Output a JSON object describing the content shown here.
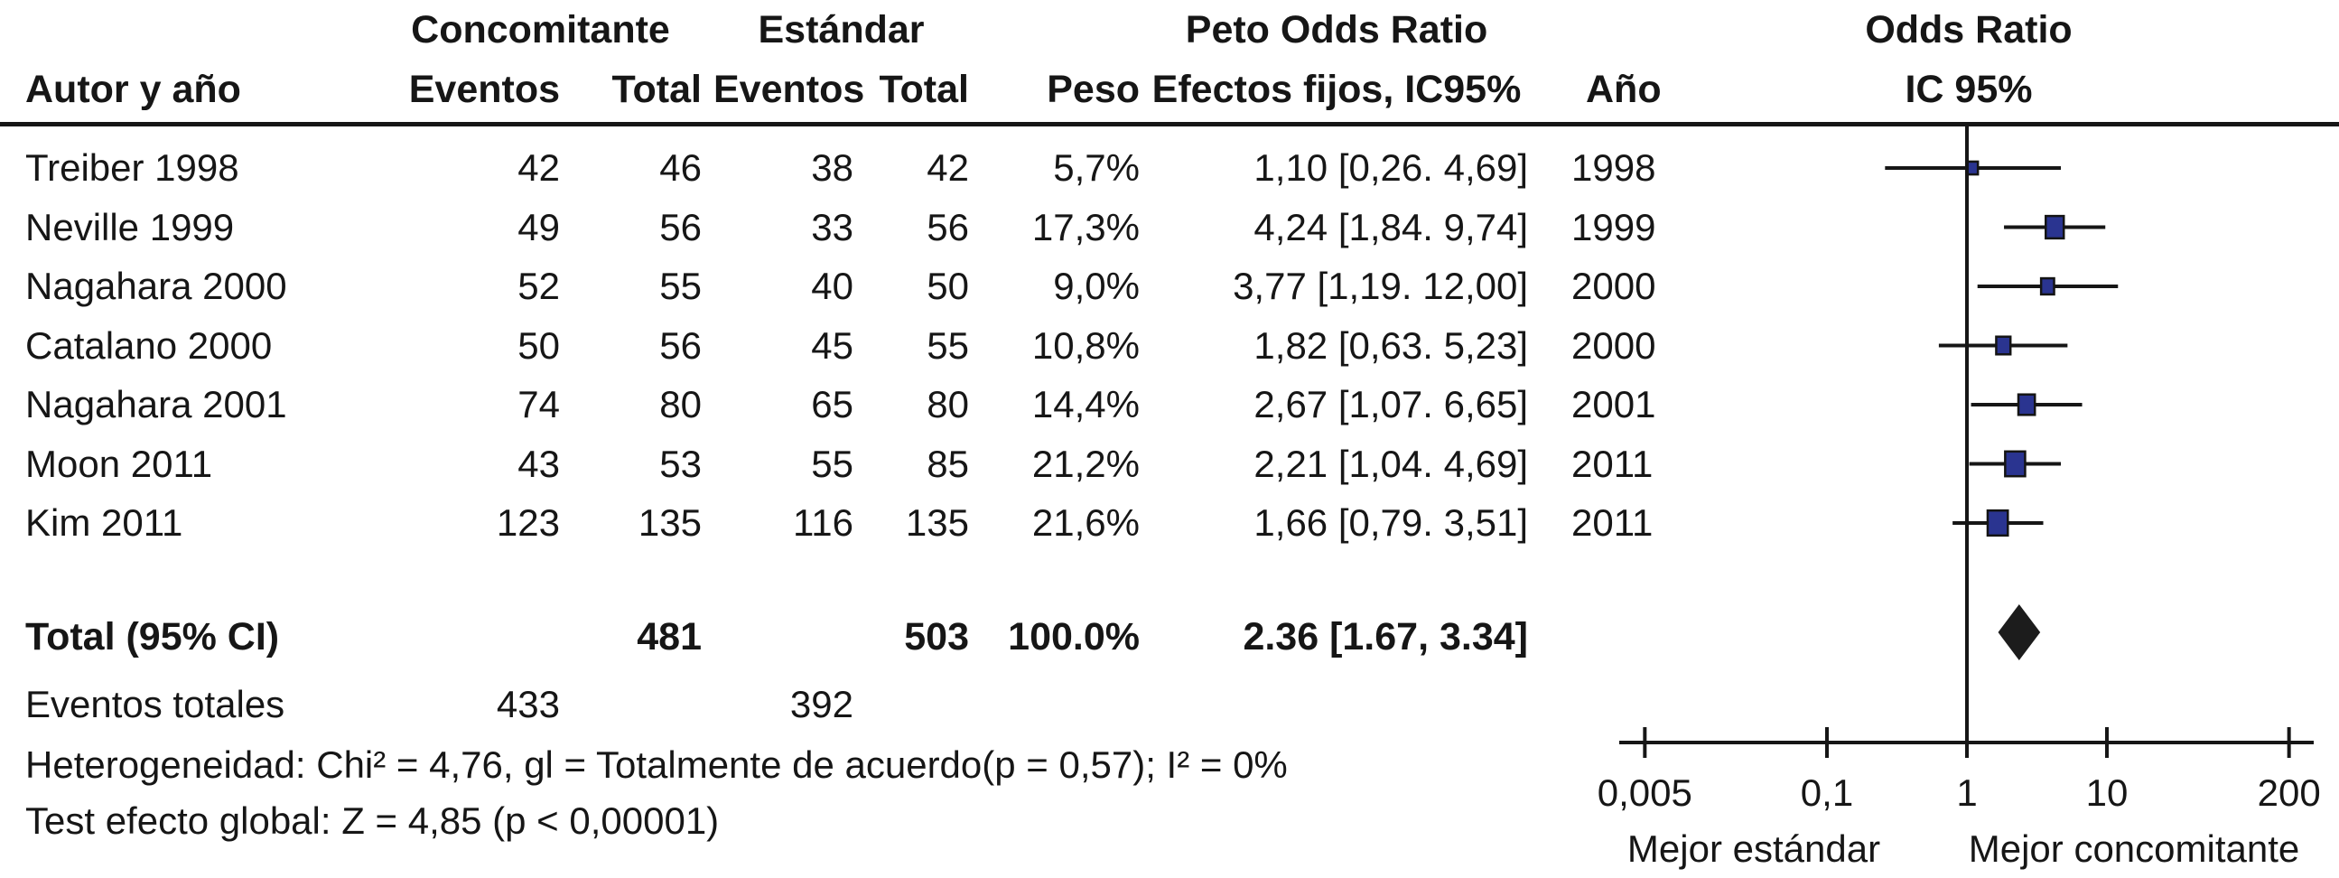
{
  "table": {
    "headers": {
      "author": "Autor y año",
      "group_concomitante": "Concomitante",
      "group_estandar": "Estándar",
      "events": "Eventos",
      "total": "Total",
      "weight": "Peso",
      "or_line1": "Peto Odds Ratio",
      "or_line2": "Efectos fijos, IC95%",
      "year": "Año",
      "plot_line1": "Odds Ratio",
      "plot_line2": "IC 95%"
    },
    "total_row": {
      "label": "Total (95% CI)",
      "total_conc": "481",
      "total_std": "503",
      "weight": "100.0%",
      "or_label": "2.36 [1.67, 3.34]"
    },
    "events_row": {
      "label": "Eventos totales",
      "events_conc": "433",
      "events_std": "392"
    },
    "footnotes": {
      "heterogeneity": "Heterogeneidad: Chi² = 4,76, gl = Totalmente de acuerdo(p = 0,57); I² = 0%",
      "overall_effect": "Test efecto global: Z = 4,85 (p < 0,00001)"
    }
  },
  "chart_data": {
    "type": "forest",
    "scale": "log10",
    "title": "Odds Ratio",
    "subtitle": "IC 95%",
    "null_line": 1,
    "xlim": [
      0.005,
      200
    ],
    "x_ticks": [
      0.005,
      0.1,
      1,
      10,
      200
    ],
    "x_tick_labels": [
      "0,005",
      "0,1",
      "1",
      "10",
      "200"
    ],
    "direction_label_left": "Mejor estándar",
    "direction_label_right": "Mejor concomitante",
    "studies": [
      {
        "author": "Treiber 1998",
        "events_conc": "42",
        "total_conc": "46",
        "events_std": "38",
        "total_std": "42",
        "weight_label": "5,7%",
        "or_label": "1,10 [0,26. 4,69]",
        "year": "1998",
        "or": 1.1,
        "ci_low": 0.26,
        "ci_high": 4.69,
        "weight_pct": 5.7
      },
      {
        "author": "Neville 1999",
        "events_conc": "49",
        "total_conc": "56",
        "events_std": "33",
        "total_std": "56",
        "weight_label": "17,3%",
        "or_label": "4,24 [1,84. 9,74]",
        "year": "1999",
        "or": 4.24,
        "ci_low": 1.84,
        "ci_high": 9.74,
        "weight_pct": 17.3
      },
      {
        "author": "Nagahara 2000",
        "events_conc": "52",
        "total_conc": "55",
        "events_std": "40",
        "total_std": "50",
        "weight_label": "9,0%",
        "or_label": "3,77 [1,19. 12,00]",
        "year": "2000",
        "or": 3.77,
        "ci_low": 1.19,
        "ci_high": 12.0,
        "weight_pct": 9.0
      },
      {
        "author": "Catalano 2000",
        "events_conc": "50",
        "total_conc": "56",
        "events_std": "45",
        "total_std": "55",
        "weight_label": "10,8%",
        "or_label": "1,82 [0,63. 5,23]",
        "year": "2000",
        "or": 1.82,
        "ci_low": 0.63,
        "ci_high": 5.23,
        "weight_pct": 10.8
      },
      {
        "author": "Nagahara 2001",
        "events_conc": "74",
        "total_conc": "80",
        "events_std": "65",
        "total_std": "80",
        "weight_label": "14,4%",
        "or_label": "2,67 [1,07. 6,65]",
        "year": "2001",
        "or": 2.67,
        "ci_low": 1.07,
        "ci_high": 6.65,
        "weight_pct": 14.4
      },
      {
        "author": "Moon 2011",
        "events_conc": "43",
        "total_conc": "53",
        "events_std": "55",
        "total_std": "85",
        "weight_label": "21,2%",
        "or_label": "2,21 [1,04. 4,69]",
        "year": "2011",
        "or": 2.21,
        "ci_low": 1.04,
        "ci_high": 4.69,
        "weight_pct": 21.2
      },
      {
        "author": "Kim 2011",
        "events_conc": "123",
        "total_conc": "135",
        "events_std": "116",
        "total_std": "135",
        "weight_label": "21,6%",
        "or_label": "1,66 [0,79. 3,51]",
        "year": "2011",
        "or": 1.66,
        "ci_low": 0.79,
        "ci_high": 3.51,
        "weight_pct": 21.6
      }
    ],
    "total": {
      "or": 2.36,
      "ci_low": 1.67,
      "ci_high": 3.34
    }
  },
  "colors": {
    "ink": "#161616",
    "marker_fill": "#2a3490",
    "marker_stroke": "#141414",
    "diamond_fill": "#1c1c1c"
  }
}
